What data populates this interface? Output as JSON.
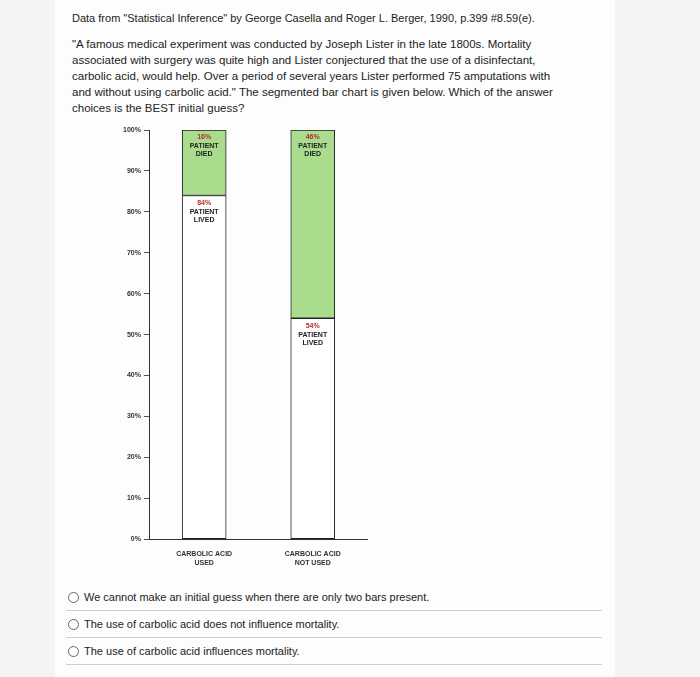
{
  "header": "Data from \"Statistical Inference\" by George Casella and Roger L. Berger, 1990, p.399 #8.59(e).",
  "question": "\"A famous medical experiment was conducted by Joseph Lister in the late 1800s. Mortality associated with surgery was quite high and Lister conjectured that the use of a disinfectant, carbolic acid, would help. Over a period of several years Lister performed 75 amputations with and without using carbolic acid.\" The segmented bar chart is given below. Which of the answer choices is the BEST initial guess?",
  "chart_data": {
    "type": "bar",
    "stacked": true,
    "categories": [
      "CARBOLIC ACID USED",
      "CARBOLIC ACID NOT USED"
    ],
    "series": [
      {
        "name": "PATIENT LIVED",
        "color": "#ffffff",
        "values": [
          84,
          54
        ],
        "value_labels": [
          "84%",
          "54%"
        ]
      },
      {
        "name": "PATIENT DIED",
        "color": "#a9dc8c",
        "values": [
          16,
          46
        ],
        "value_labels": [
          "16%",
          "46%"
        ]
      }
    ],
    "ylim": [
      0,
      100
    ],
    "yticks": [
      {
        "value": 0,
        "label": "0%"
      },
      {
        "value": 10,
        "label": "10%"
      },
      {
        "value": 20,
        "label": "20%"
      },
      {
        "value": 30,
        "label": "30%"
      },
      {
        "value": 40,
        "label": "40%"
      },
      {
        "value": 50,
        "label": "50%"
      },
      {
        "value": 60,
        "label": "60%"
      },
      {
        "value": 70,
        "label": "70%"
      },
      {
        "value": 80,
        "label": "80%"
      },
      {
        "value": 90,
        "label": "90%"
      },
      {
        "value": 100,
        "label": "100%"
      }
    ],
    "grid": false,
    "data_labels": true
  },
  "options": [
    "We cannot make an initial guess when there are only two bars present.",
    "The use of carbolic acid does not influence mortality.",
    "The use of carbolic acid influences mortality."
  ]
}
